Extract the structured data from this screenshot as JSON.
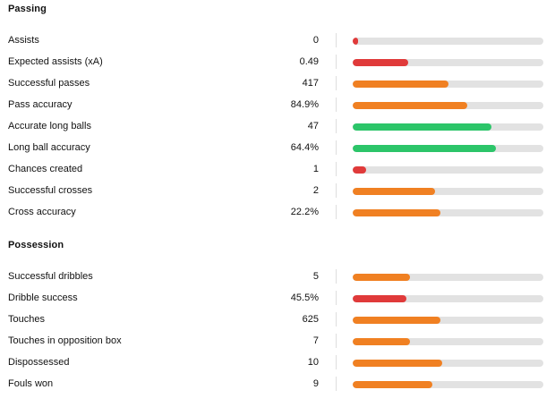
{
  "colors": {
    "red": "#e03a3a",
    "orange": "#f08022",
    "green": "#2cc569",
    "track": "#e2e2e2"
  },
  "sections": [
    {
      "title": "Passing",
      "stats": [
        {
          "label": "Assists",
          "value": "0",
          "fill": 0.03,
          "color": "red"
        },
        {
          "label": "Expected assists (xA)",
          "value": "0.49",
          "fill": 0.29,
          "color": "red"
        },
        {
          "label": "Successful passes",
          "value": "417",
          "fill": 0.5,
          "color": "orange"
        },
        {
          "label": "Pass accuracy",
          "value": "84.9%",
          "fill": 0.6,
          "color": "orange"
        },
        {
          "label": "Accurate long balls",
          "value": "47",
          "fill": 0.73,
          "color": "green"
        },
        {
          "label": "Long ball accuracy",
          "value": "64.4%",
          "fill": 0.75,
          "color": "green"
        },
        {
          "label": "Chances created",
          "value": "1",
          "fill": 0.07,
          "color": "red"
        },
        {
          "label": "Successful crosses",
          "value": "2",
          "fill": 0.43,
          "color": "orange"
        },
        {
          "label": "Cross accuracy",
          "value": "22.2%",
          "fill": 0.46,
          "color": "orange"
        }
      ]
    },
    {
      "title": "Possession",
      "stats": [
        {
          "label": "Successful dribbles",
          "value": "5",
          "fill": 0.3,
          "color": "orange"
        },
        {
          "label": "Dribble success",
          "value": "45.5%",
          "fill": 0.28,
          "color": "red"
        },
        {
          "label": "Touches",
          "value": "625",
          "fill": 0.46,
          "color": "orange"
        },
        {
          "label": "Touches in opposition box",
          "value": "7",
          "fill": 0.3,
          "color": "orange"
        },
        {
          "label": "Dispossessed",
          "value": "10",
          "fill": 0.47,
          "color": "orange"
        },
        {
          "label": "Fouls won",
          "value": "9",
          "fill": 0.42,
          "color": "orange"
        }
      ]
    }
  ]
}
